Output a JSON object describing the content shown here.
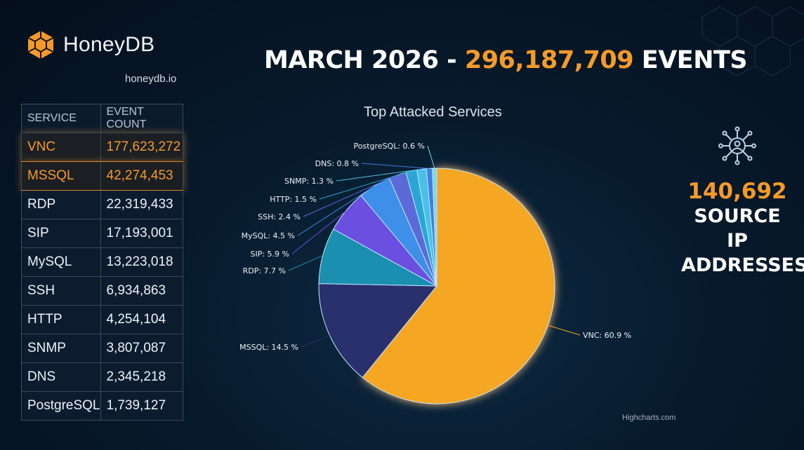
{
  "brand": {
    "name": "HoneyDB",
    "site": "honeydb.io"
  },
  "headline": {
    "prefix": "MARCH 2026 - ",
    "count": "296,187,709",
    "suffix": " EVENTS"
  },
  "table": {
    "headers": [
      "SERVICE",
      "EVENT COUNT"
    ],
    "rows": [
      {
        "service": "VNC",
        "count": "177,623,272"
      },
      {
        "service": "MSSQL",
        "count": "42,274,453"
      },
      {
        "service": "RDP",
        "count": "22,319,433"
      },
      {
        "service": "SIP",
        "count": "17,193,001"
      },
      {
        "service": "MySQL",
        "count": "13,223,018"
      },
      {
        "service": "SSH",
        "count": "6,934,863"
      },
      {
        "service": "HTTP",
        "count": "4,254,104"
      },
      {
        "service": "SNMP",
        "count": "3,807,087"
      },
      {
        "service": "DNS",
        "count": "2,345,218"
      },
      {
        "service": "PostgreSQL",
        "count": "1,739,127"
      }
    ]
  },
  "stat": {
    "value": "140,692",
    "lines": [
      "SOURCE",
      "IP",
      "ADDRESSES"
    ],
    "icon": "network-user-icon"
  },
  "credit": "Highcharts.com",
  "chart_data": {
    "type": "pie",
    "title": "Top Attacked Services",
    "slices": [
      {
        "name": "VNC",
        "value": 60.9,
        "label": "VNC: 60.9 %",
        "color": "#f5a623"
      },
      {
        "name": "MSSQL",
        "value": 14.5,
        "label": "MSSQL: 14.5 %",
        "color": "#2a2f6e"
      },
      {
        "name": "RDP",
        "value": 7.7,
        "label": "RDP: 7.7 %",
        "color": "#1b8fb0"
      },
      {
        "name": "SIP",
        "value": 5.9,
        "label": "SIP: 5.9 %",
        "color": "#6a4fe0"
      },
      {
        "name": "MySQL",
        "value": 4.5,
        "label": "MySQL: 4.5 %",
        "color": "#3d8fe8"
      },
      {
        "name": "SSH",
        "value": 2.4,
        "label": "SSH: 2.4 %",
        "color": "#5c6ad8"
      },
      {
        "name": "HTTP",
        "value": 1.5,
        "label": "HTTP: 1.5 %",
        "color": "#2aa6d4"
      },
      {
        "name": "SNMP",
        "value": 1.3,
        "label": "SNMP: 1.3 %",
        "color": "#4bc0e6"
      },
      {
        "name": "DNS",
        "value": 0.8,
        "label": "DNS: 0.8 %",
        "color": "#3f7fe0"
      },
      {
        "name": "PostgreSQL",
        "value": 0.6,
        "label": "PostgreSQL: 0.6 %",
        "color": "#7cd8f0"
      }
    ],
    "accent": "#f59a2a"
  }
}
